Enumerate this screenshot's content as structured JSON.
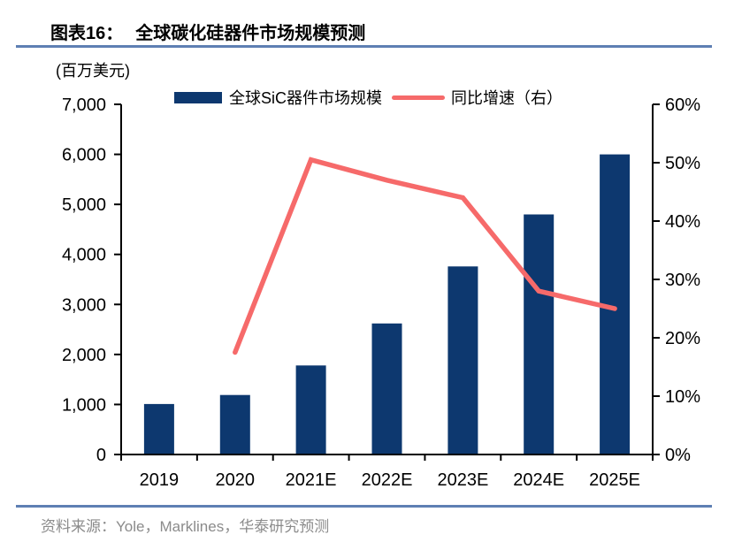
{
  "header": {
    "figure_label": "图表16：",
    "title": "全球碳化硅器件市场规模预测"
  },
  "source": {
    "label": "资料来源：Yole，Marklines，华泰研究预测"
  },
  "colors": {
    "bar_navy": "#0D386F",
    "line_salmon": "#F66A6A",
    "rule_steel_blue": "#5E7FB3",
    "source_gray": "#8B8B8B",
    "axis_black": "#000000"
  },
  "chart_data": {
    "type": "bar+line",
    "title": "全球碳化硅器件市场规模预测",
    "categories": [
      "2019",
      "2020",
      "2021E",
      "2022E",
      "2023E",
      "2024E",
      "2025E"
    ],
    "series": [
      {
        "name": "全球SiC器件市场规模",
        "type": "bar",
        "axis": "left",
        "color": "#0D386F",
        "values": [
          1010,
          1190,
          1780,
          2620,
          3760,
          4800,
          6000
        ]
      },
      {
        "name": "同比增速（右）",
        "type": "line",
        "axis": "right",
        "color": "#F66A6A",
        "values": [
          null,
          17.5,
          50.5,
          47,
          44,
          28,
          25
        ]
      }
    ],
    "left_axis": {
      "label": "(百万美元)",
      "min": 0,
      "max": 7000,
      "step": 1000,
      "tick_labels": [
        "0",
        "1,000",
        "2,000",
        "3,000",
        "4,000",
        "5,000",
        "6,000",
        "7,000"
      ]
    },
    "right_axis": {
      "min": 0,
      "max": 60,
      "step": 10,
      "unit": "%",
      "tick_labels": [
        "0%",
        "10%",
        "20%",
        "30%",
        "40%",
        "50%",
        "60%"
      ]
    },
    "legend_position": "top",
    "grid": false
  }
}
